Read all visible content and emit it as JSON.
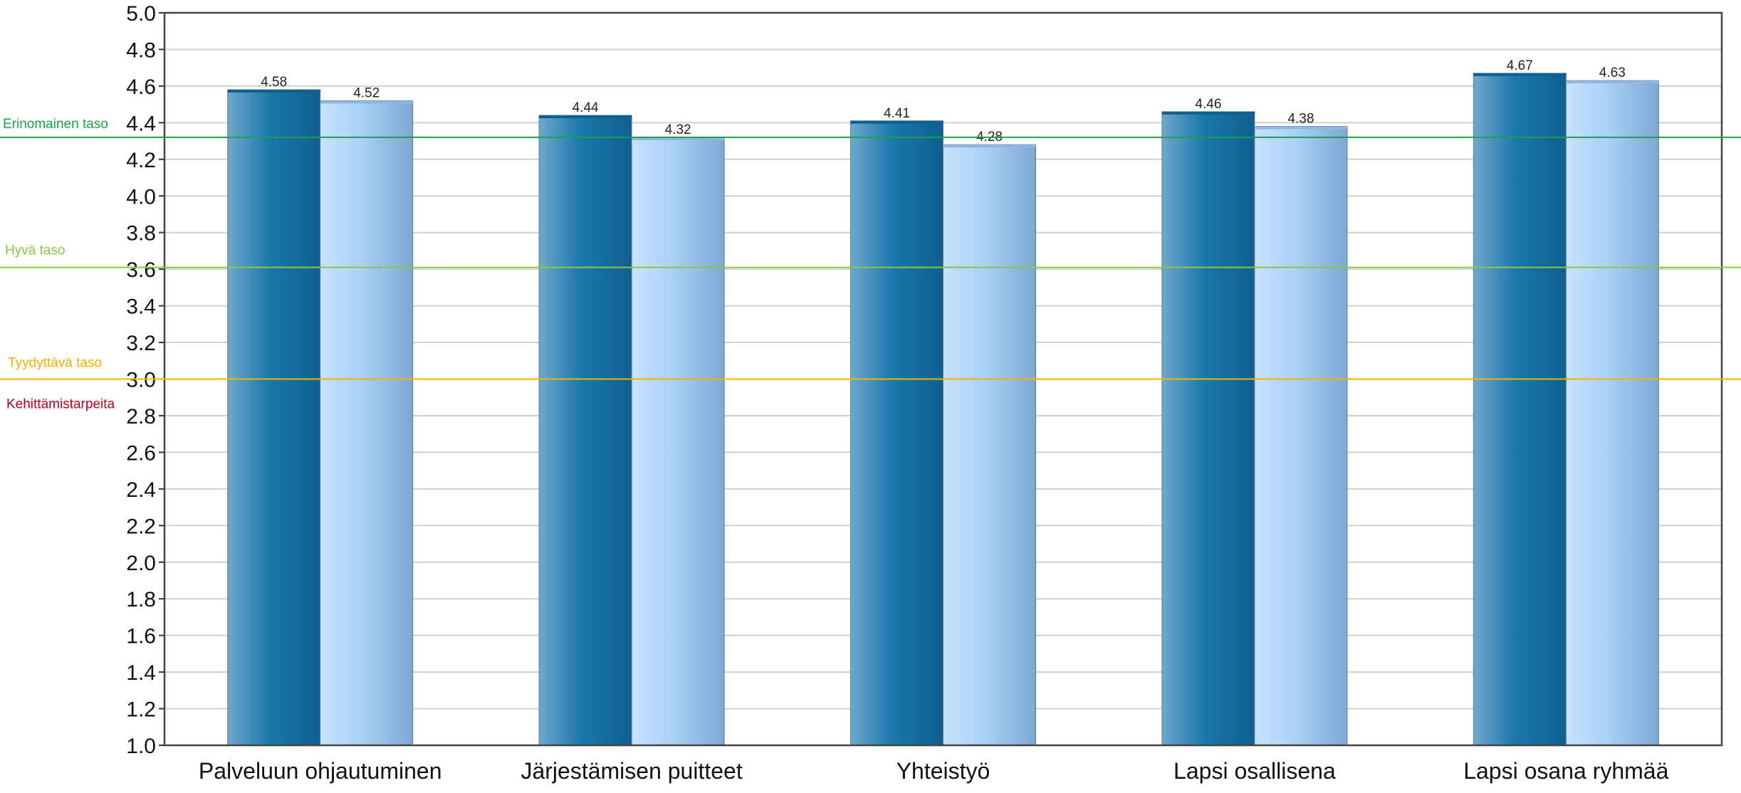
{
  "chart_data": {
    "type": "bar",
    "categories": [
      "Palveluun ohjautuminen",
      "Järjestämisen puitteet",
      "Yhteistyö",
      "Lapsi osallisena",
      "Lapsi osana ryhmää"
    ],
    "series": [
      {
        "values": [
          4.58,
          4.44,
          4.41,
          4.46,
          4.67
        ],
        "color": "#1f7bb0"
      },
      {
        "values": [
          4.52,
          4.32,
          4.28,
          4.38,
          4.63
        ],
        "color": "#9fcaf5"
      }
    ],
    "ylim": [
      1.0,
      5.0
    ],
    "ytick_step": 0.2,
    "grid": true,
    "reference_lines": [
      {
        "label": "Erinomainen taso",
        "value": 4.32,
        "color": "#1aa24a"
      },
      {
        "label": "Hyvä taso",
        "value": 3.61,
        "color": "#8cc63f"
      },
      {
        "label": "Tyydyttävä taso",
        "value": 3.0,
        "color": "#f0b400"
      }
    ],
    "below_label": {
      "label": "Kehittämistarpeita",
      "color": "#b8001f"
    }
  }
}
